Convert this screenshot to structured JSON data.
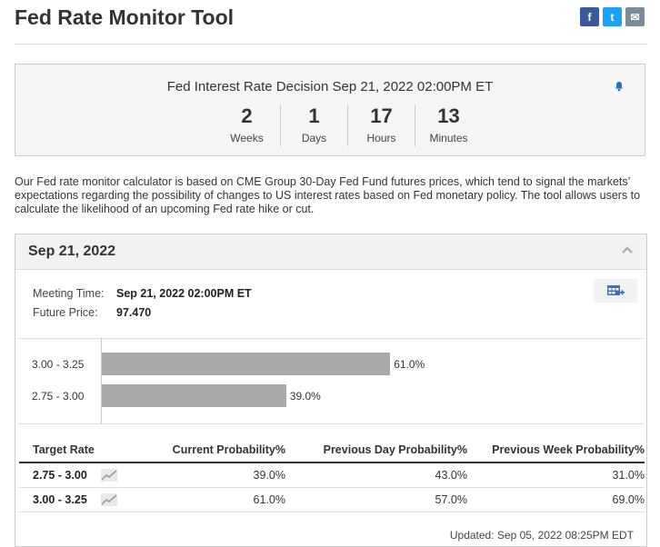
{
  "header": {
    "title": "Fed Rate Monitor Tool",
    "share": [
      {
        "icon": "facebook-icon",
        "glyph": "f",
        "color": "#3b5998"
      },
      {
        "icon": "twitter-icon",
        "glyph": "t",
        "color": "#1da1f2"
      },
      {
        "icon": "email-icon",
        "glyph": "✉",
        "color": "#7d8b97"
      }
    ]
  },
  "countdown": {
    "title": "Fed Interest Rate Decision Sep 21, 2022 02:00PM ET",
    "units": [
      {
        "value": "2",
        "label": "Weeks"
      },
      {
        "value": "1",
        "label": "Days"
      },
      {
        "value": "17",
        "label": "Hours"
      },
      {
        "value": "13",
        "label": "Minutes"
      }
    ],
    "bell_icon": "bell-icon"
  },
  "description": "Our Fed rate monitor calculator is based on CME Group 30-Day Fed Fund futures prices, which tend to signal the markets’ expectations regarding the possibility of changes to US interest rates based on Fed monetary policy. The tool allows users to calculate the likelihood of an upcoming Fed rate hike or cut.",
  "meeting": {
    "date": "Sep 21, 2022",
    "meeting_time_label": "Meeting Time:",
    "meeting_time": "Sep 21, 2022 02:00PM ET",
    "future_price_label": "Future Price:",
    "future_price": "97.470"
  },
  "chart_data": {
    "type": "bar",
    "orientation": "horizontal",
    "categories": [
      "3.00 - 3.25",
      "2.75 - 3.00"
    ],
    "values": [
      61.0,
      39.0
    ],
    "value_labels": [
      "61.0%",
      "39.0%"
    ],
    "xlim": [
      0,
      100
    ],
    "color": "#aaaaaa"
  },
  "table": {
    "headers": [
      "Target Rate",
      "Current Probability%",
      "Previous Day Probability%",
      "Previous Week Probability%"
    ],
    "rows": [
      {
        "rate": "2.75 - 3.00",
        "current": "39.0%",
        "prev_day": "43.0%",
        "prev_week": "31.0%"
      },
      {
        "rate": "3.00 - 3.25",
        "current": "61.0%",
        "prev_day": "57.0%",
        "prev_week": "69.0%"
      }
    ]
  },
  "updated": "Updated: Sep 05, 2022 08:25PM EDT"
}
